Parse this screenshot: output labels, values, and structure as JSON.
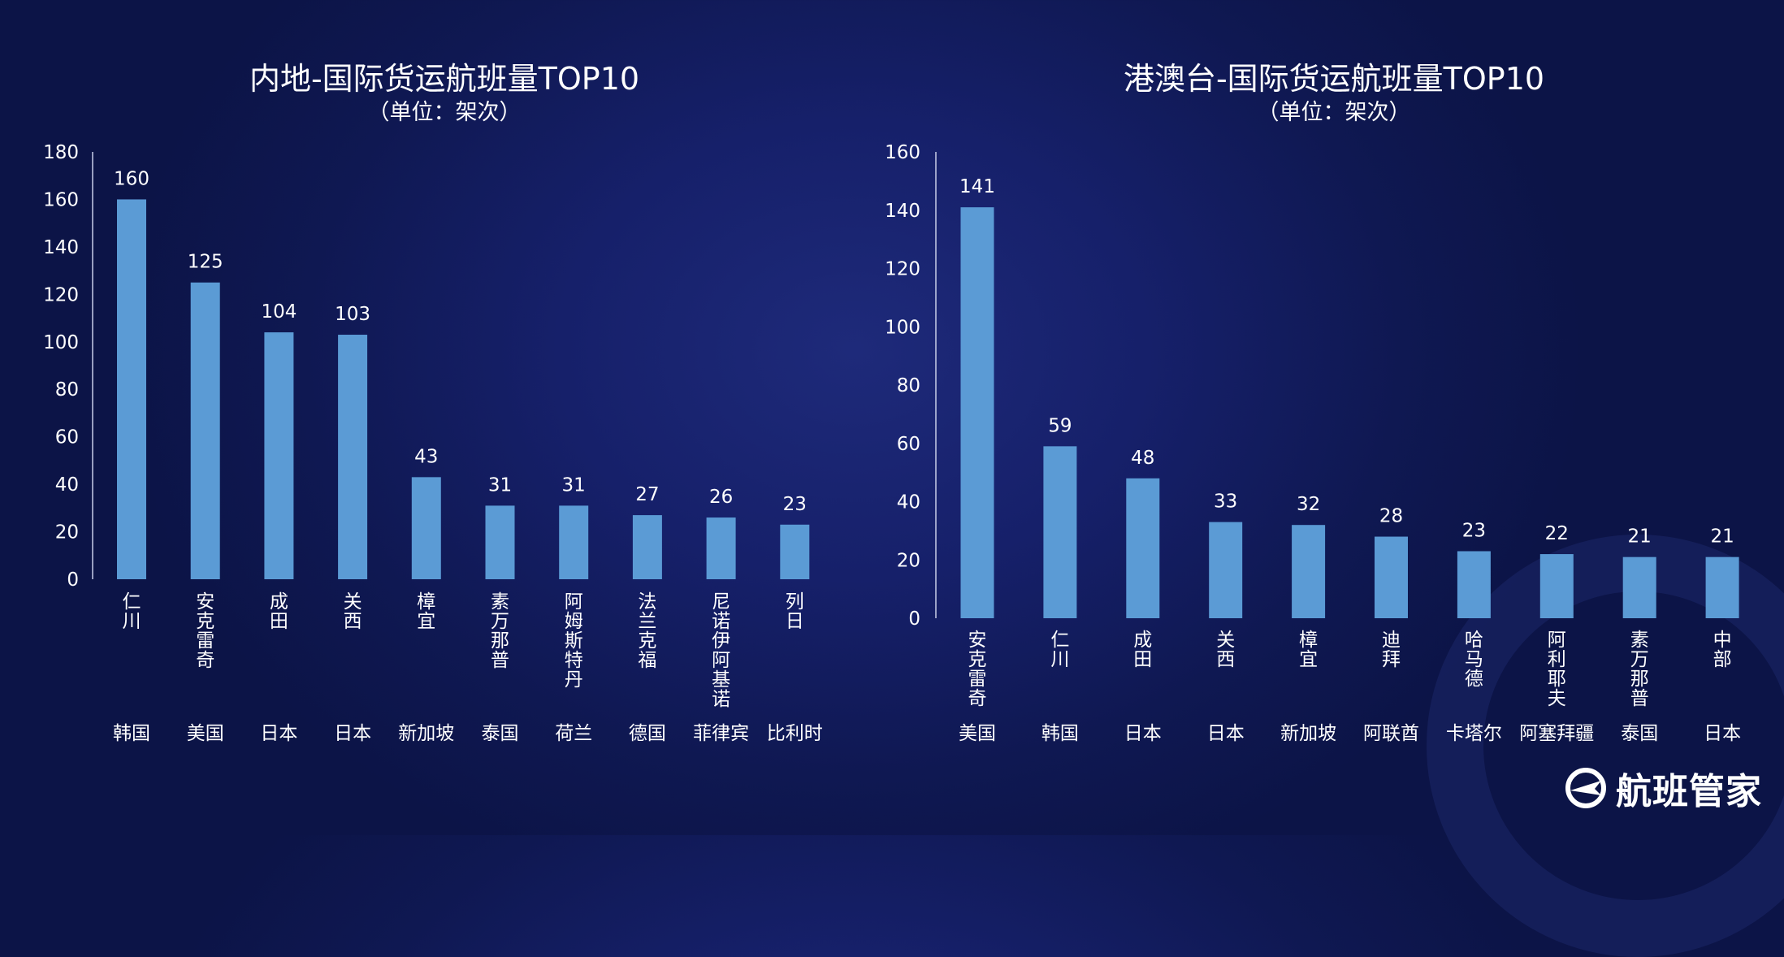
{
  "chart_data": [
    {
      "type": "bar",
      "title": "内地-国际货运航班量TOP10",
      "subtitle": "（单位：架次）",
      "categories": [
        "仁川",
        "安克雷奇",
        "成田",
        "关西",
        "樟宜",
        "素万那普",
        "阿姆斯特丹",
        "法兰克福",
        "尼诺伊阿基诺",
        "列日"
      ],
      "countries": [
        "韩国",
        "美国",
        "日本",
        "日本",
        "新加坡",
        "泰国",
        "荷兰",
        "德国",
        "菲律宾",
        "比利时"
      ],
      "values": [
        160,
        125,
        104,
        103,
        43,
        31,
        31,
        27,
        26,
        23
      ],
      "yticks": [
        0,
        20,
        40,
        60,
        80,
        100,
        120,
        140,
        160,
        180
      ],
      "ylim": [
        0,
        180
      ],
      "bar_color": "#5b9bd5",
      "grid": false
    },
    {
      "type": "bar",
      "title": "港澳台-国际货运航班量TOP10",
      "subtitle": "（单位：架次）",
      "categories": [
        "安克雷奇",
        "仁川",
        "成田",
        "关西",
        "樟宜",
        "迪拜",
        "哈马德",
        "阿利耶夫",
        "素万那普",
        "中部"
      ],
      "countries": [
        "美国",
        "韩国",
        "日本",
        "日本",
        "新加坡",
        "阿联酋",
        "卡塔尔",
        "阿塞拜疆",
        "泰国",
        "日本"
      ],
      "values": [
        141,
        59,
        48,
        33,
        32,
        28,
        23,
        22,
        21,
        21
      ],
      "yticks": [
        0,
        20,
        40,
        60,
        80,
        100,
        120,
        140,
        160
      ],
      "ylim": [
        0,
        160
      ],
      "bar_color": "#5b9bd5",
      "grid": false
    }
  ],
  "brand": {
    "name": "航班管家",
    "icon": "flight-manager-logo-icon"
  }
}
